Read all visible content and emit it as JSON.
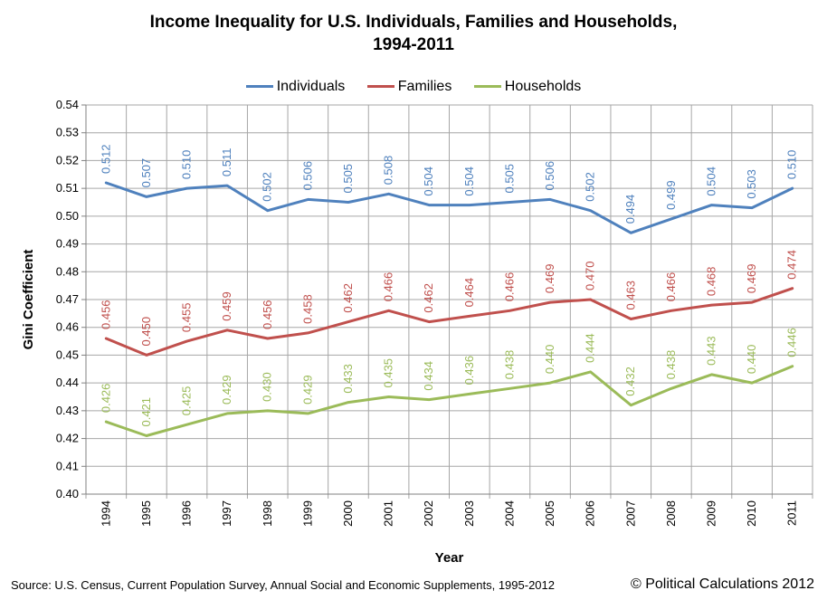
{
  "chart_data": {
    "type": "line",
    "title_line1": "Income Inequality for U.S. Individuals, Families and Households,",
    "title_line2": "1994-2011",
    "xlabel": "Year",
    "ylabel": "Gini Coefficient",
    "ylim": [
      0.4,
      0.54
    ],
    "ystep": 0.01,
    "grid": true,
    "legend_position": "top",
    "x": [
      "1994",
      "1995",
      "1996",
      "1997",
      "1998",
      "1999",
      "2000",
      "2001",
      "2002",
      "2003",
      "2004",
      "2005",
      "2006",
      "2007",
      "2008",
      "2009",
      "2010",
      "2011"
    ],
    "series": [
      {
        "name": "Individuals",
        "color": "#4f81bd",
        "values": [
          0.512,
          0.507,
          0.51,
          0.511,
          0.502,
          0.506,
          0.505,
          0.508,
          0.504,
          0.504,
          0.505,
          0.506,
          0.502,
          0.494,
          0.499,
          0.504,
          0.503,
          0.51
        ]
      },
      {
        "name": "Families",
        "color": "#c0504d",
        "values": [
          0.456,
          0.45,
          0.455,
          0.459,
          0.456,
          0.458,
          0.462,
          0.466,
          0.462,
          0.464,
          0.466,
          0.469,
          0.47,
          0.463,
          0.466,
          0.468,
          0.469,
          0.474
        ]
      },
      {
        "name": "Households",
        "color": "#9bbb59",
        "values": [
          0.426,
          0.421,
          0.425,
          0.429,
          0.43,
          0.429,
          0.433,
          0.435,
          0.434,
          0.436,
          0.438,
          0.44,
          0.444,
          0.432,
          0.438,
          0.443,
          0.44,
          0.446
        ]
      }
    ]
  },
  "footer": {
    "source": "Source: U.S. Census, Current Population Survey, Annual Social and Economic Supplements, 1995-2012",
    "credit": "© Political Calculations 2012"
  }
}
